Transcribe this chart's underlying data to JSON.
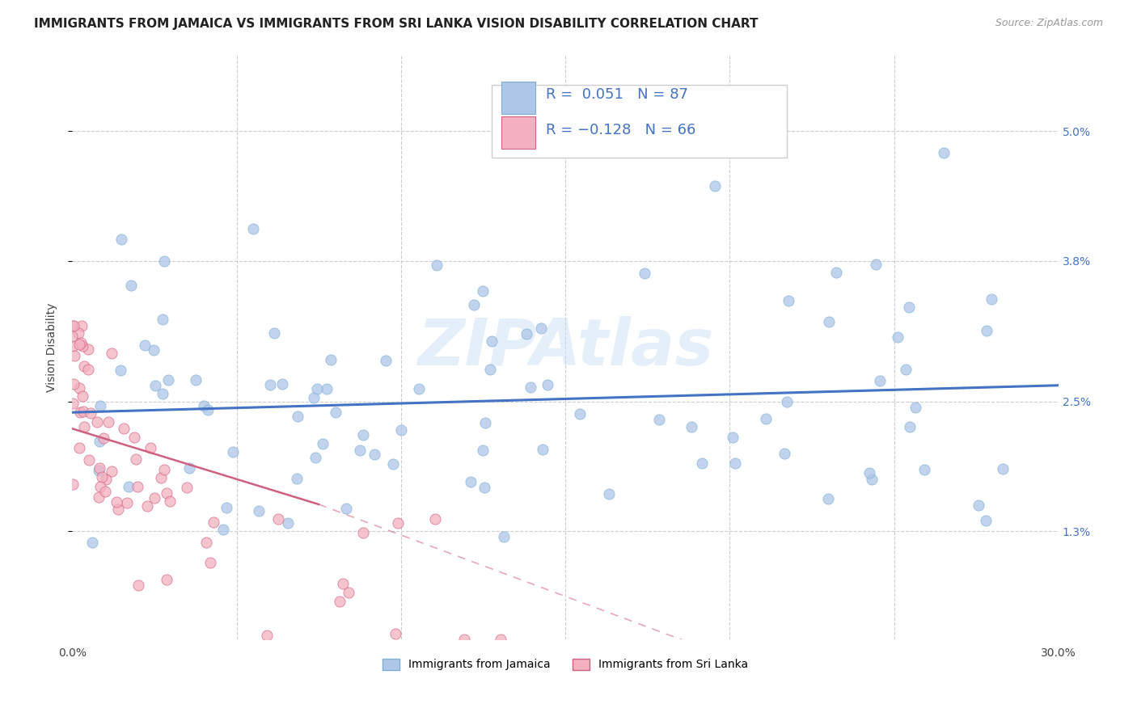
{
  "title": "IMMIGRANTS FROM JAMAICA VS IMMIGRANTS FROM SRI LANKA VISION DISABILITY CORRELATION CHART",
  "source": "Source: ZipAtlas.com",
  "ylabel": "Vision Disability",
  "ytick_labels": [
    "1.3%",
    "2.5%",
    "3.8%",
    "5.0%"
  ],
  "ytick_values": [
    0.013,
    0.025,
    0.038,
    0.05
  ],
  "xlim": [
    0.0,
    0.3
  ],
  "ylim": [
    0.003,
    0.057
  ],
  "jamaica_color": "#aec6e8",
  "jamaica_edge": "#7bafd4",
  "srilanka_color": "#f4b0c0",
  "srilanka_edge": "#d06080",
  "jamaica_line_color": "#4472c4",
  "srilanka_line_color": "#d06080",
  "jamaica_N": 87,
  "srilanka_N": 66,
  "watermark": "ZIPAtlas",
  "background_color": "#ffffff",
  "grid_color": "#cccccc",
  "title_fontsize": 11,
  "label_fontsize": 10,
  "tick_fontsize": 10,
  "legend_fontsize": 13
}
